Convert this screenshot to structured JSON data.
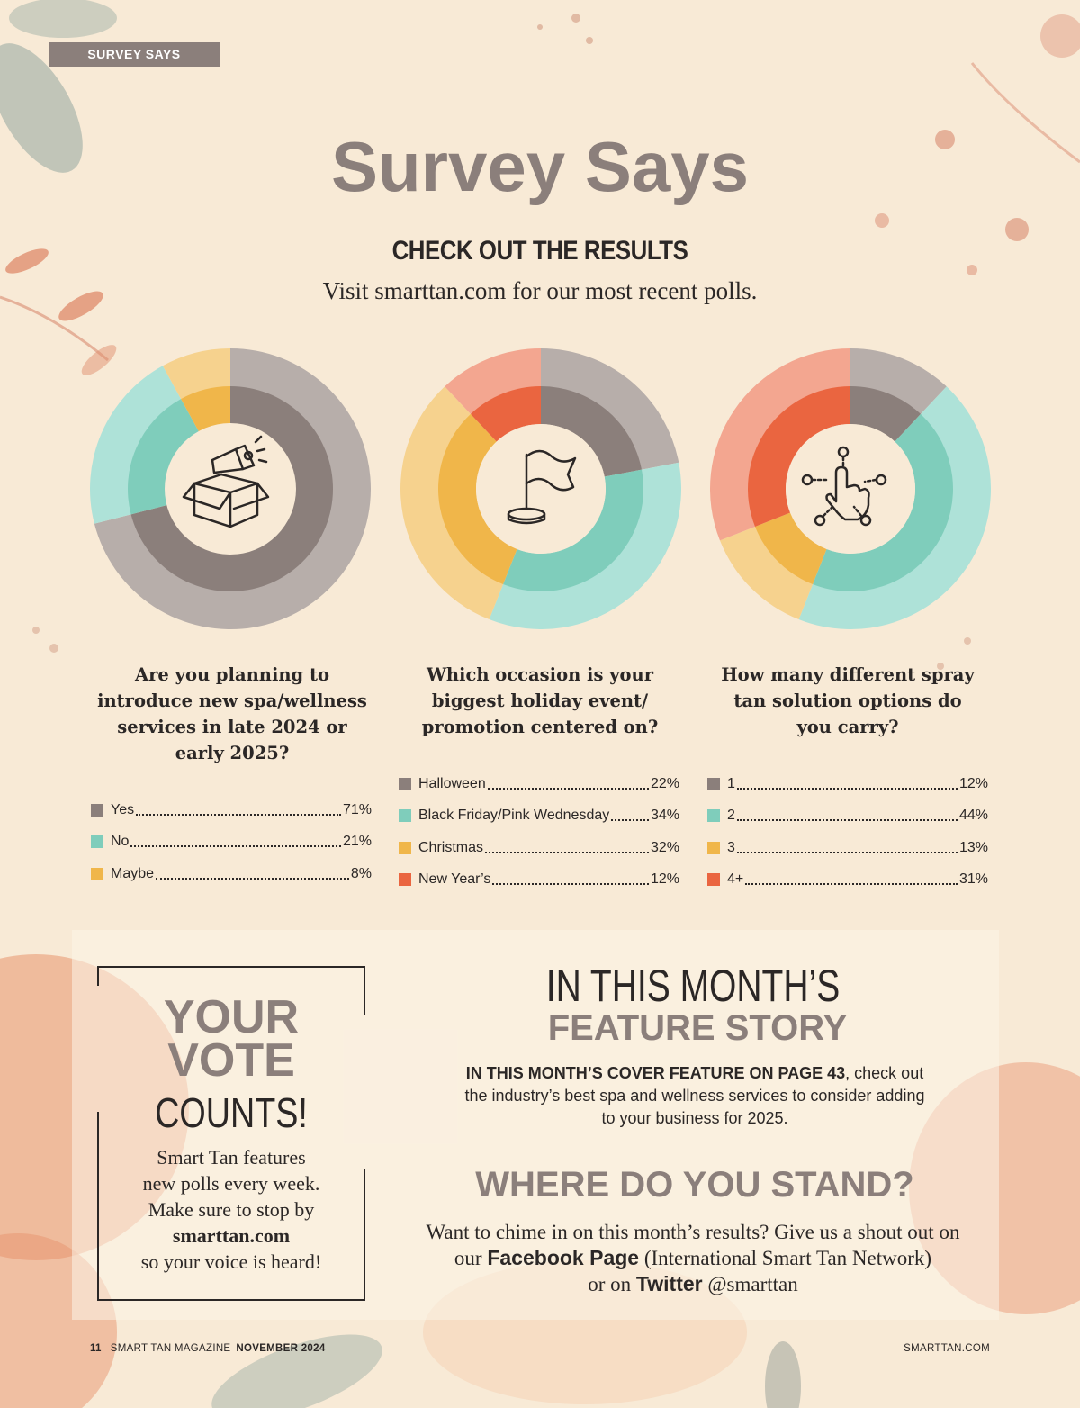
{
  "header": {
    "section_tag": "SURVEY SAYS",
    "title": "Survey Says",
    "subtitle": "CHECK OUT THE RESULTS",
    "intro": "Visit smarttan.com for our most recent polls."
  },
  "colors": {
    "brand_gray": "#8b7f7b",
    "light_gray": "#b7aeaa",
    "teal": "#7fcdbb",
    "light_teal": "#aee2d8",
    "yellow": "#f0b64a",
    "light_yellow": "#f6d28e",
    "orange": "#ea6540",
    "light_orange": "#f3a690",
    "background": "#f8ead6"
  },
  "chart_data": [
    {
      "type": "pie",
      "icon": "megaphone-box-icon",
      "title": "Are you planning to introduce new spa/wellness services in late 2024 or early 2025?",
      "categories": [
        "Yes",
        "No",
        "Maybe"
      ],
      "labels": [
        "Yes",
        "No",
        "Maybe"
      ],
      "values": [
        71,
        21,
        8
      ],
      "display_values": [
        "71%",
        "21%",
        "8%"
      ],
      "colors": [
        "#8b7f7b",
        "#7fcdbb",
        "#f0b64a"
      ],
      "outer_colors": [
        "#b7aeaa",
        "#aee2d8",
        "#f6d28e"
      ]
    },
    {
      "type": "pie",
      "icon": "flag-icon",
      "title": "Which occasion is your biggest holiday event/ promotion centered on?",
      "categories": [
        "Halloween",
        "Black Friday/Pink Wednesday",
        "Christmas",
        "New Year’s"
      ],
      "labels": [
        "Halloween",
        "Black Friday/Pink Wednesday",
        "Christmas",
        "New Year’s"
      ],
      "values": [
        22,
        34,
        32,
        12
      ],
      "display_values": [
        "22%",
        "34%",
        "32%",
        "12%"
      ],
      "colors": [
        "#8b7f7b",
        "#7fcdbb",
        "#f0b64a",
        "#ea6540"
      ],
      "outer_colors": [
        "#b7aeaa",
        "#aee2d8",
        "#f6d28e",
        "#f3a690"
      ]
    },
    {
      "type": "pie",
      "icon": "hand-pointer-icon",
      "title": "How many different spray tan solution options do you carry?",
      "categories": [
        "1",
        "2",
        "3",
        "4+"
      ],
      "labels": [
        "1",
        "2",
        "3",
        "4+"
      ],
      "values": [
        12,
        44,
        13,
        31
      ],
      "display_values": [
        "12%",
        "44%",
        "13%",
        "31%"
      ],
      "colors": [
        "#8b7f7b",
        "#7fcdbb",
        "#f0b64a",
        "#ea6540"
      ],
      "outer_colors": [
        "#b7aeaa",
        "#aee2d8",
        "#f6d28e",
        "#f3a690"
      ]
    }
  ],
  "questions": [
    [
      "Are you planning to",
      "introduce new spa/wellness",
      "services in late 2024 or",
      "early 2025?"
    ],
    [
      "Which occasion is your",
      "biggest holiday event/",
      "promotion centered on?"
    ],
    [
      "How many different spray",
      "tan solution options do",
      "you carry?"
    ]
  ],
  "vote": {
    "line1": "YOUR",
    "line2": "VOTE",
    "line3": "COUNTS!",
    "text_1": "Smart Tan features",
    "text_2": "new polls every week.",
    "text_3": "Make sure to stop by",
    "text_4": "smarttan.com",
    "text_5": "so your voice is heard!"
  },
  "feature": {
    "line1": "IN THIS MONTH’S",
    "line2": "FEATURE STORY",
    "lead": "IN THIS MONTH’S COVER FEATURE ON PAGE 43",
    "body_1": ", check out",
    "body_2": "the industry’s best spa and wellness services to consider adding",
    "body_3": "to your business for 2025."
  },
  "stand": {
    "title": "WHERE DO YOU STAND?",
    "text_1": "Want to chime in on this month’s results? Give us a shout out on",
    "text_2a": "our ",
    "facebook": "Facebook Page",
    "text_2b": " (International Smart Tan Network)",
    "text_3a": "or on ",
    "twitter": "Twitter",
    "text_3b": " @smarttan"
  },
  "footer": {
    "page": "11",
    "magazine": "SMART TAN MAGAZINE",
    "issue": "NOVEMBER 2024",
    "site": "SMARTTAN.COM"
  }
}
